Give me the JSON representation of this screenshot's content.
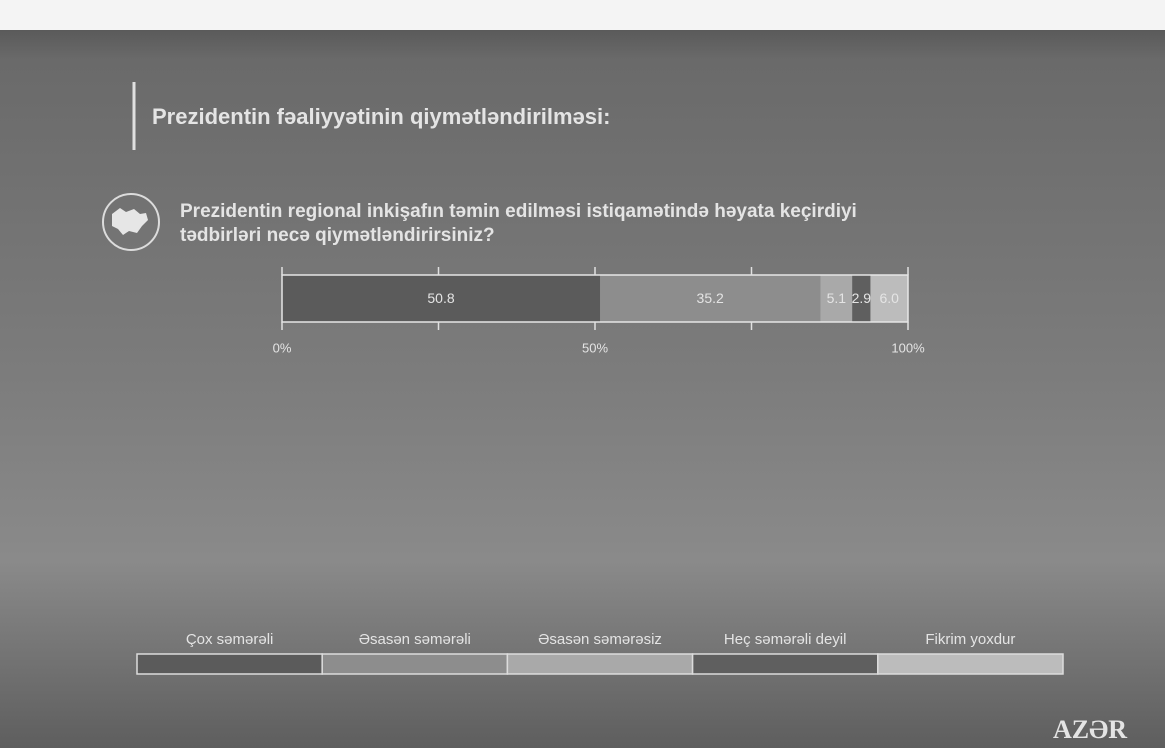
{
  "chart_data": {
    "type": "stacked-bar-100",
    "title": "Prezidentin fəaliyyətinin qiymətləndirilməsi:",
    "subtitle": [
      "Prezidentin regional inkişafın təmin edilməsi istiqamətində həyata keçirdiyi",
      "tədbirləri necə qiymətləndirirsiniz?"
    ],
    "categories": [
      null
    ],
    "series": [
      {
        "name": "Çox səmərəli",
        "color": "#5b5b5b",
        "values": [
          50.8
        ]
      },
      {
        "name": "Əsasən səmərəli",
        "color": "#8d8d8d",
        "values": [
          35.2
        ]
      },
      {
        "name": "Əsasən səmərəsiz",
        "color": "#a9a9a9",
        "values": [
          5.1
        ]
      },
      {
        "name": "Heç səmərəli deyil",
        "color": "#5f5f5f",
        "values": [
          2.9
        ]
      },
      {
        "name": "Fikrim yoxdur",
        "color": "#bcbcbc",
        "values": [
          6.0
        ],
        "value_labels": [
          "6.0"
        ]
      }
    ],
    "xlim": [
      0,
      100
    ],
    "xticks": [
      {
        "value": 0,
        "label": "0%"
      },
      {
        "value": 50,
        "label": "50%"
      },
      {
        "value": 100,
        "label": "100%"
      }
    ],
    "minor_xticks": [
      25,
      75
    ],
    "watermark": "AZƏR"
  }
}
